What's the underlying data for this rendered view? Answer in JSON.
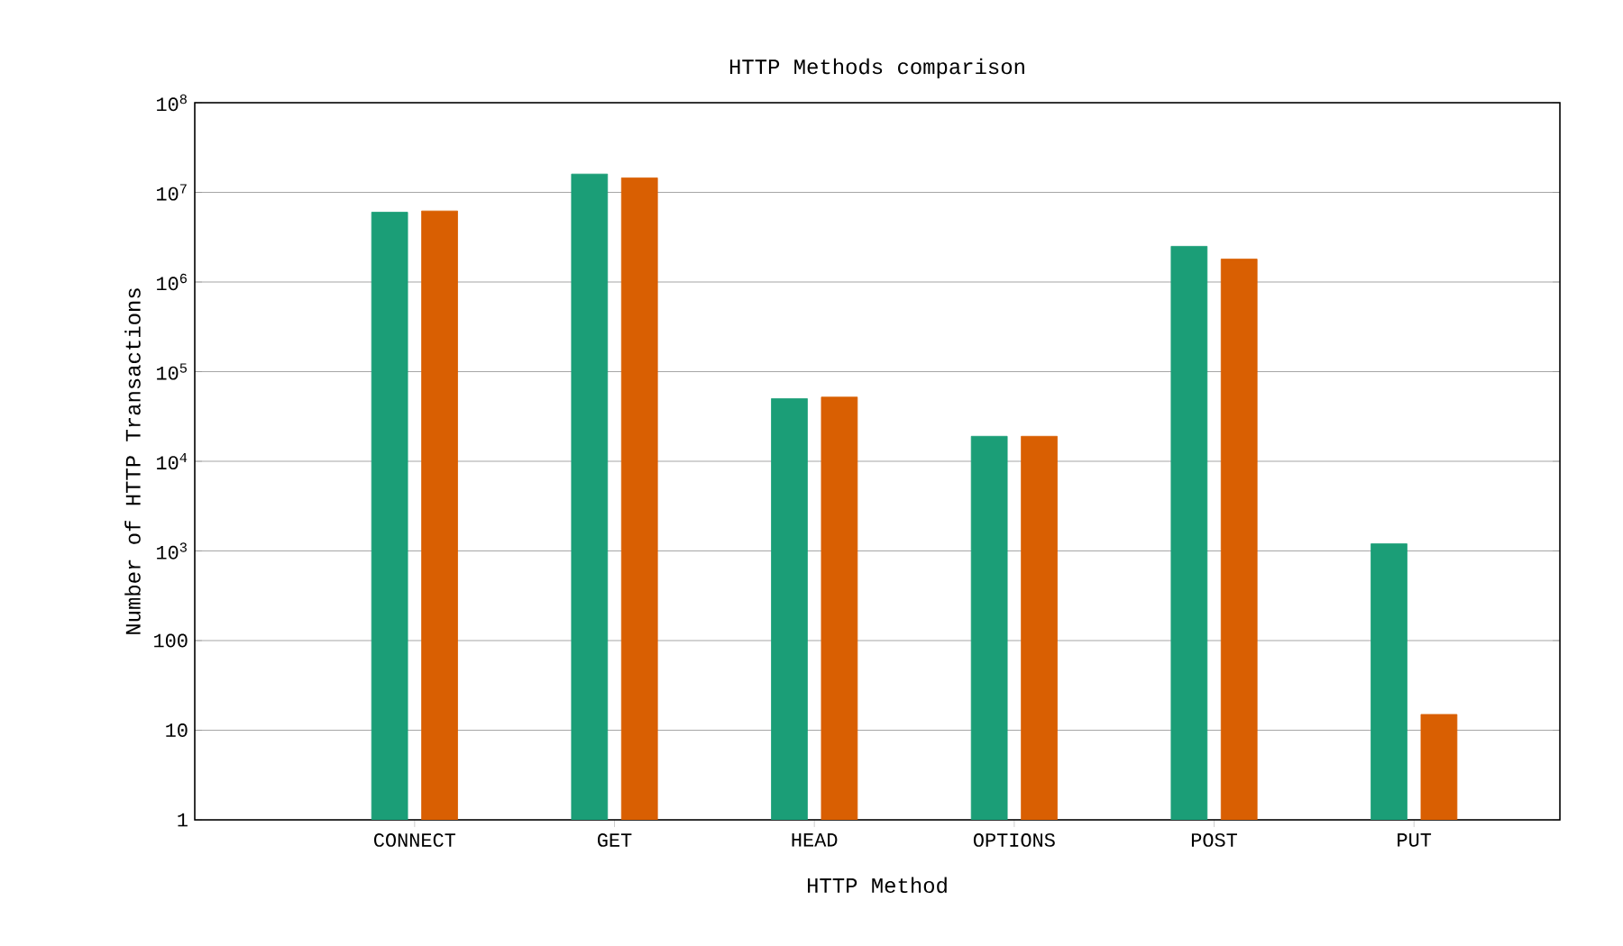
{
  "chart_data": {
    "type": "bar",
    "title": "HTTP Methods comparison",
    "xlabel": "HTTP Method",
    "ylabel": "Number of HTTP Transactions",
    "categories": [
      "CONNECT",
      "GET",
      "HEAD",
      "OPTIONS",
      "POST",
      "PUT"
    ],
    "series": [
      {
        "color": "#1b9e77",
        "values": [
          6000000,
          16000000,
          50000,
          19000,
          2500000,
          1200
        ]
      },
      {
        "color": "#d95f02",
        "values": [
          6200000,
          14500000,
          52000,
          19000,
          1800000,
          15
        ]
      }
    ],
    "log": "y",
    "ylim": [
      1,
      100000000
    ],
    "yticks": [
      1,
      10,
      100,
      {
        "value": 1000,
        "label": "10$^{3}$"
      },
      {
        "value": 10000,
        "label": "10$^{4}$"
      },
      {
        "value": 100000,
        "label": "10$^{5}$"
      },
      {
        "value": 1000000,
        "label": "10$^{6}$"
      },
      {
        "value": 10000000,
        "label": "10$^{7}$"
      },
      {
        "value": 100000000,
        "label": "10$^{8}$"
      }
    ],
    "grid": "y"
  }
}
